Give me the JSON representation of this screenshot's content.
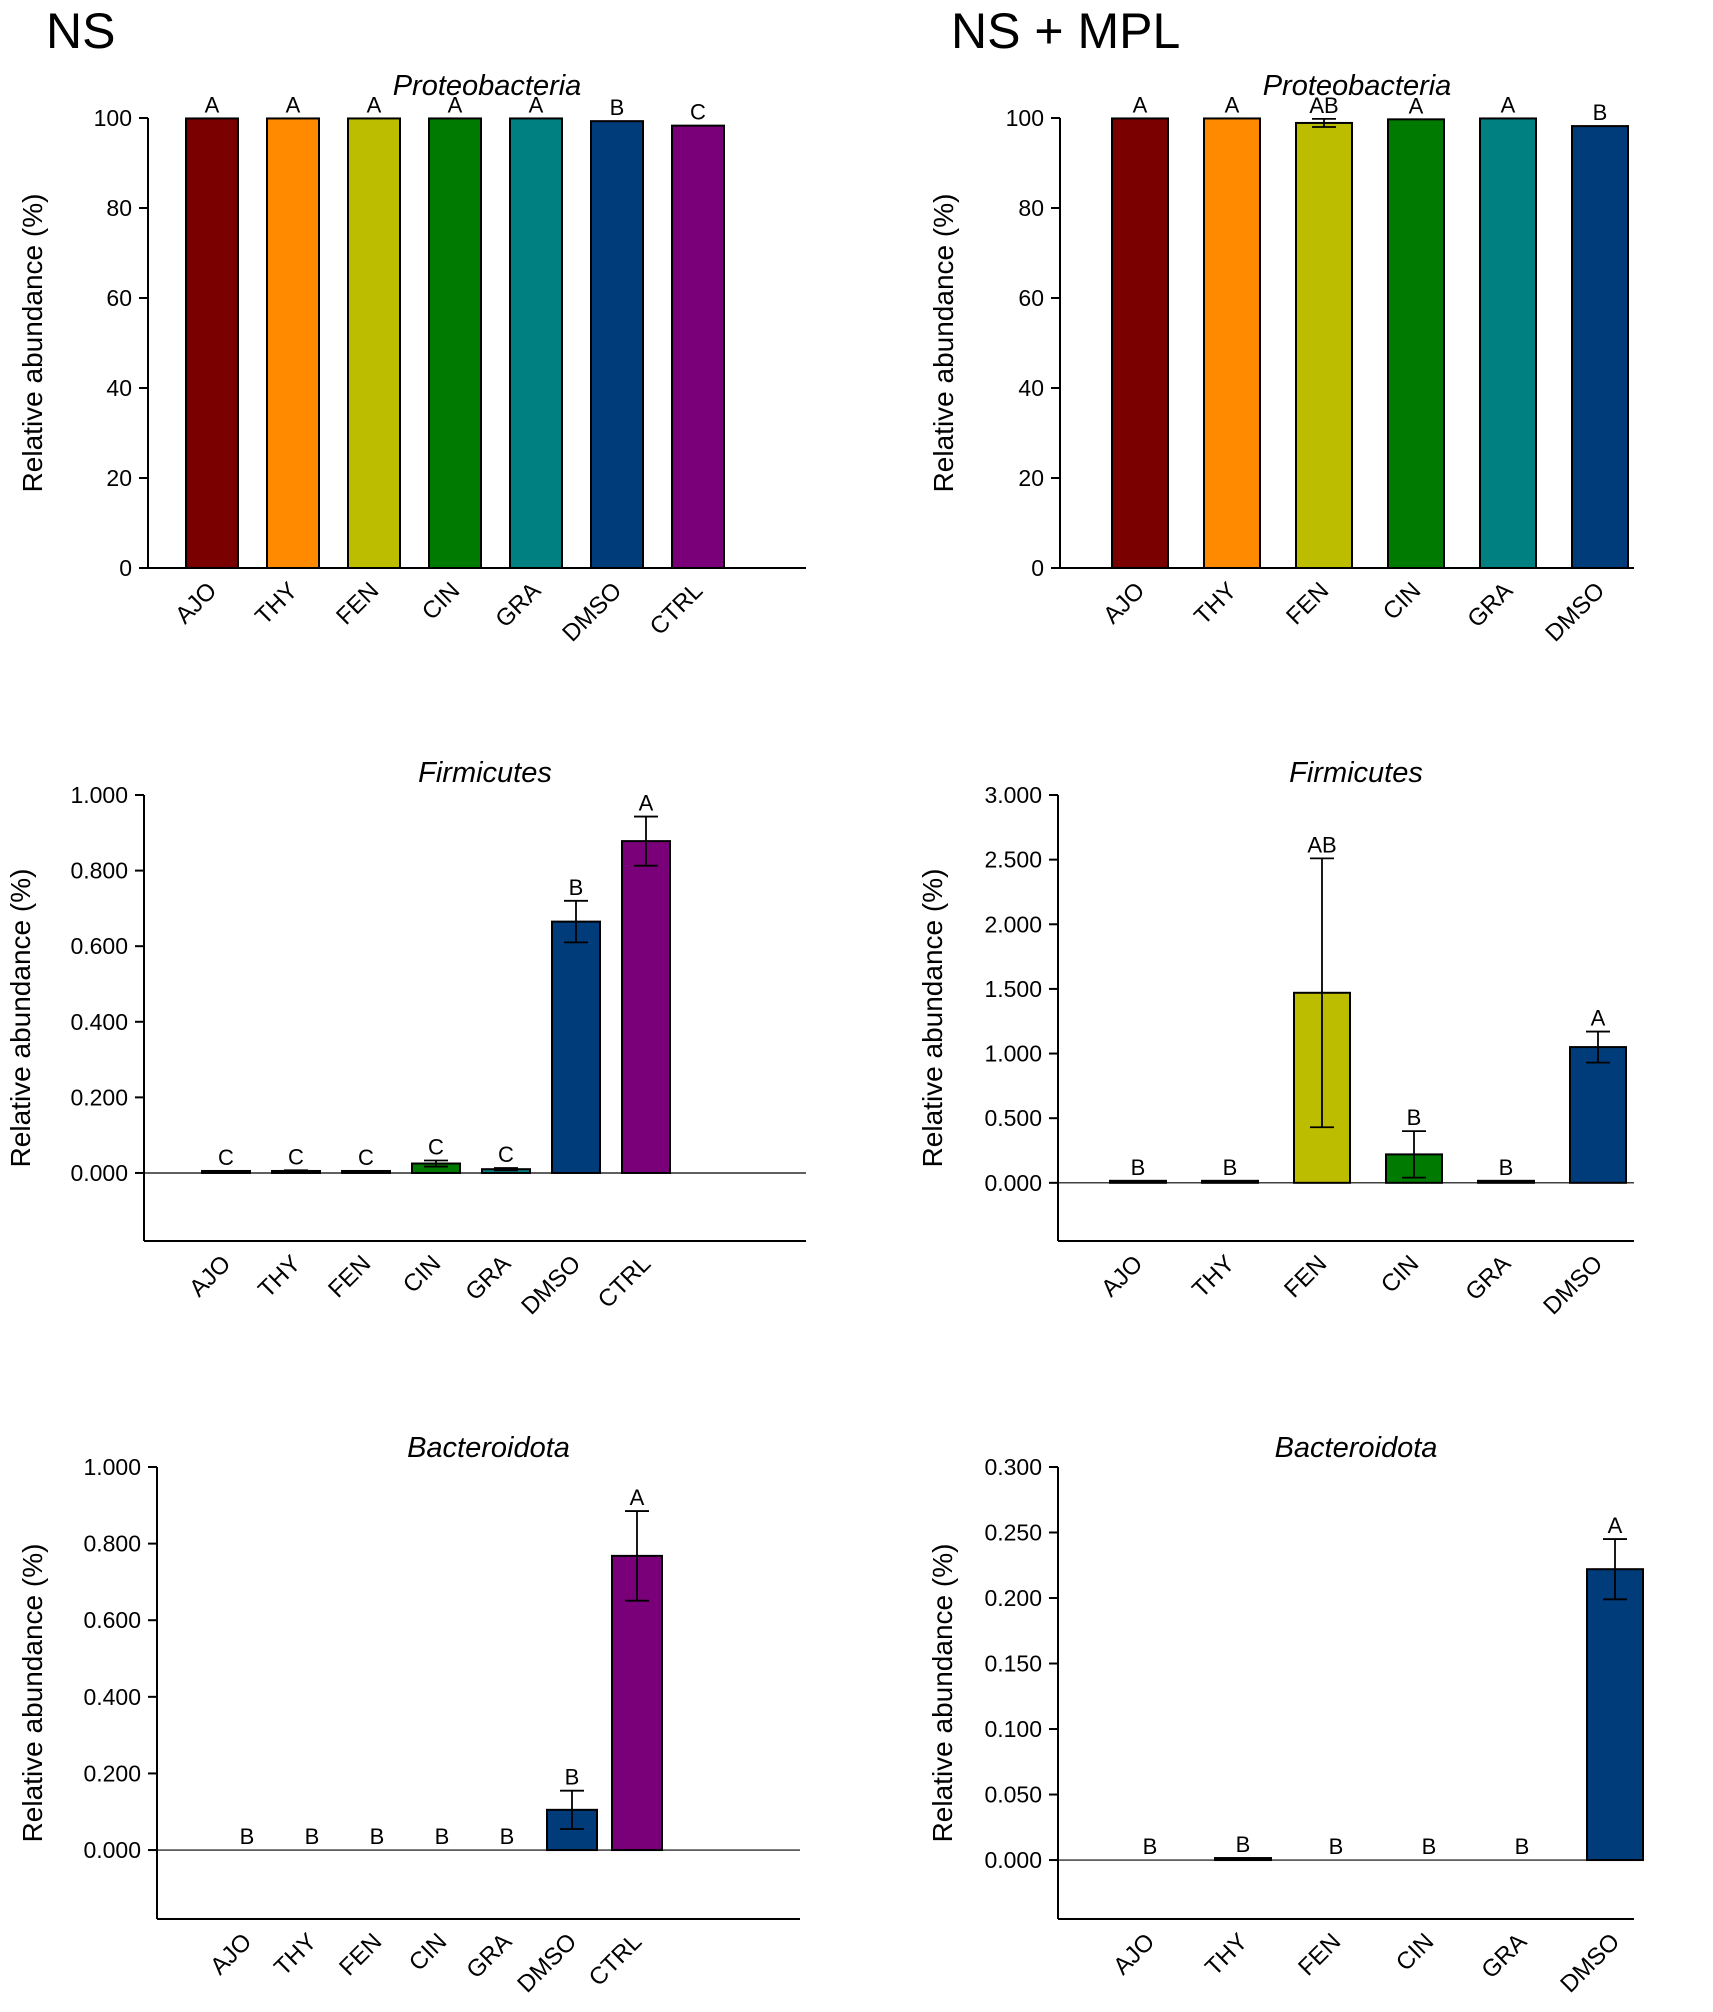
{
  "figure": {
    "left_title": "NS",
    "right_title": "NS + MPL"
  },
  "colors": {
    "AJO": "#7a0000",
    "THY": "#ff8a00",
    "FEN": "#bdbd00",
    "CIN": "#007a00",
    "GRA": "#008080",
    "DMSO": "#003b7a",
    "CTRL": "#7a007a"
  },
  "chart_data": [
    {
      "id": "ns-proteobacteria",
      "type": "bar",
      "title": "Proteobacteria",
      "ylabel": "Relative abundance (%)",
      "xlabel": "",
      "categories": [
        "AJO",
        "THY",
        "FEN",
        "CIN",
        "GRA",
        "DMSO",
        "CTRL"
      ],
      "values": [
        99.9,
        99.9,
        99.9,
        99.9,
        99.9,
        99.3,
        98.3
      ],
      "errors": [
        0,
        0,
        0,
        0,
        0,
        0,
        0
      ],
      "letters": [
        "A",
        "A",
        "A",
        "A",
        "A",
        "B",
        "C"
      ],
      "ylim": [
        0,
        100
      ],
      "yticks": [
        0,
        20,
        40,
        60,
        80,
        100
      ],
      "ytick_labels": [
        "0",
        "20",
        "40",
        "60",
        "80",
        "100"
      ]
    },
    {
      "id": "mpl-proteobacteria",
      "type": "bar",
      "title": "Proteobacteria",
      "ylabel": "Relative abundance (%)",
      "xlabel": "",
      "categories": [
        "AJO",
        "THY",
        "FEN",
        "CIN",
        "GRA",
        "DMSO"
      ],
      "values": [
        99.9,
        99.9,
        98.9,
        99.7,
        99.9,
        98.2
      ],
      "errors": [
        0,
        0,
        0.9,
        0,
        0,
        0
      ],
      "letters": [
        "A",
        "A",
        "AB",
        "A",
        "A",
        "B"
      ],
      "ylim": [
        0,
        100
      ],
      "yticks": [
        0,
        20,
        40,
        60,
        80,
        100
      ],
      "ytick_labels": [
        "0",
        "20",
        "40",
        "60",
        "80",
        "100"
      ]
    },
    {
      "id": "ns-firmicutes",
      "type": "bar",
      "title": "Firmicutes",
      "ylabel": "Relative abundance (%)",
      "xlabel": "",
      "categories": [
        "AJO",
        "THY",
        "FEN",
        "CIN",
        "GRA",
        "DMSO",
        "CTRL"
      ],
      "values": [
        0.002,
        0.005,
        0.003,
        0.025,
        0.01,
        0.665,
        0.878
      ],
      "errors": [
        0.001,
        0.002,
        0.001,
        0.008,
        0.003,
        0.055,
        0.065
      ],
      "letters": [
        "C",
        "C",
        "C",
        "C",
        "C",
        "B",
        "A"
      ],
      "ylim": [
        -0.18,
        1.0
      ],
      "yticks": [
        0,
        0.2,
        0.4,
        0.6,
        0.8,
        1.0
      ],
      "ytick_labels": [
        "0.000",
        "0.200",
        "0.400",
        "0.600",
        "0.800",
        "1.000"
      ]
    },
    {
      "id": "mpl-firmicutes",
      "type": "bar",
      "title": "Firmicutes",
      "ylabel": "Relative abundance (%)",
      "xlabel": "",
      "categories": [
        "AJO",
        "THY",
        "FEN",
        "CIN",
        "GRA",
        "DMSO"
      ],
      "values": [
        0.01,
        0.005,
        1.47,
        0.22,
        0.003,
        1.05
      ],
      "errors": [
        0,
        0,
        1.04,
        0.18,
        0,
        0.12
      ],
      "letters": [
        "B",
        "B",
        "AB",
        "B",
        "B",
        "A"
      ],
      "ylim": [
        -0.45,
        3.0
      ],
      "yticks": [
        0,
        0.5,
        1.0,
        1.5,
        2.0,
        2.5,
        3.0
      ],
      "ytick_labels": [
        "0.000",
        "0.500",
        "1.000",
        "1.500",
        "2.000",
        "2.500",
        "3.000"
      ]
    },
    {
      "id": "ns-bacteroidota",
      "type": "bar",
      "title": "Bacteroidota",
      "ylabel": "Relative abundance (%)",
      "xlabel": "",
      "categories": [
        "AJO",
        "THY",
        "FEN",
        "CIN",
        "GRA",
        "DMSO",
        "CTRL"
      ],
      "values": [
        0,
        0,
        0,
        0,
        0,
        0.105,
        0.768
      ],
      "errors": [
        0,
        0,
        0,
        0,
        0,
        0.05,
        0.117
      ],
      "letters": [
        "B",
        "B",
        "B",
        "B",
        "B",
        "B",
        "A"
      ],
      "ylim": [
        -0.18,
        1.0
      ],
      "yticks": [
        0,
        0.2,
        0.4,
        0.6,
        0.8,
        1.0
      ],
      "ytick_labels": [
        "0.000",
        "0.200",
        "0.400",
        "0.600",
        "0.800",
        "1.000"
      ]
    },
    {
      "id": "mpl-bacteroidota",
      "type": "bar",
      "title": "Bacteroidota",
      "ylabel": "Relative abundance (%)",
      "xlabel": "",
      "categories": [
        "AJO",
        "THY",
        "FEN",
        "CIN",
        "GRA",
        "DMSO"
      ],
      "values": [
        0,
        0.001,
        0,
        0,
        0,
        0.222
      ],
      "errors": [
        0,
        0,
        0,
        0,
        0,
        0.023
      ],
      "letters": [
        "B",
        "B",
        "B",
        "B",
        "B",
        "A"
      ],
      "ylim": [
        -0.045,
        0.3
      ],
      "yticks": [
        0,
        0.05,
        0.1,
        0.15,
        0.2,
        0.25,
        0.3
      ],
      "ytick_labels": [
        "0.000",
        "0.050",
        "0.100",
        "0.150",
        "0.200",
        "0.250",
        "0.300"
      ]
    }
  ]
}
